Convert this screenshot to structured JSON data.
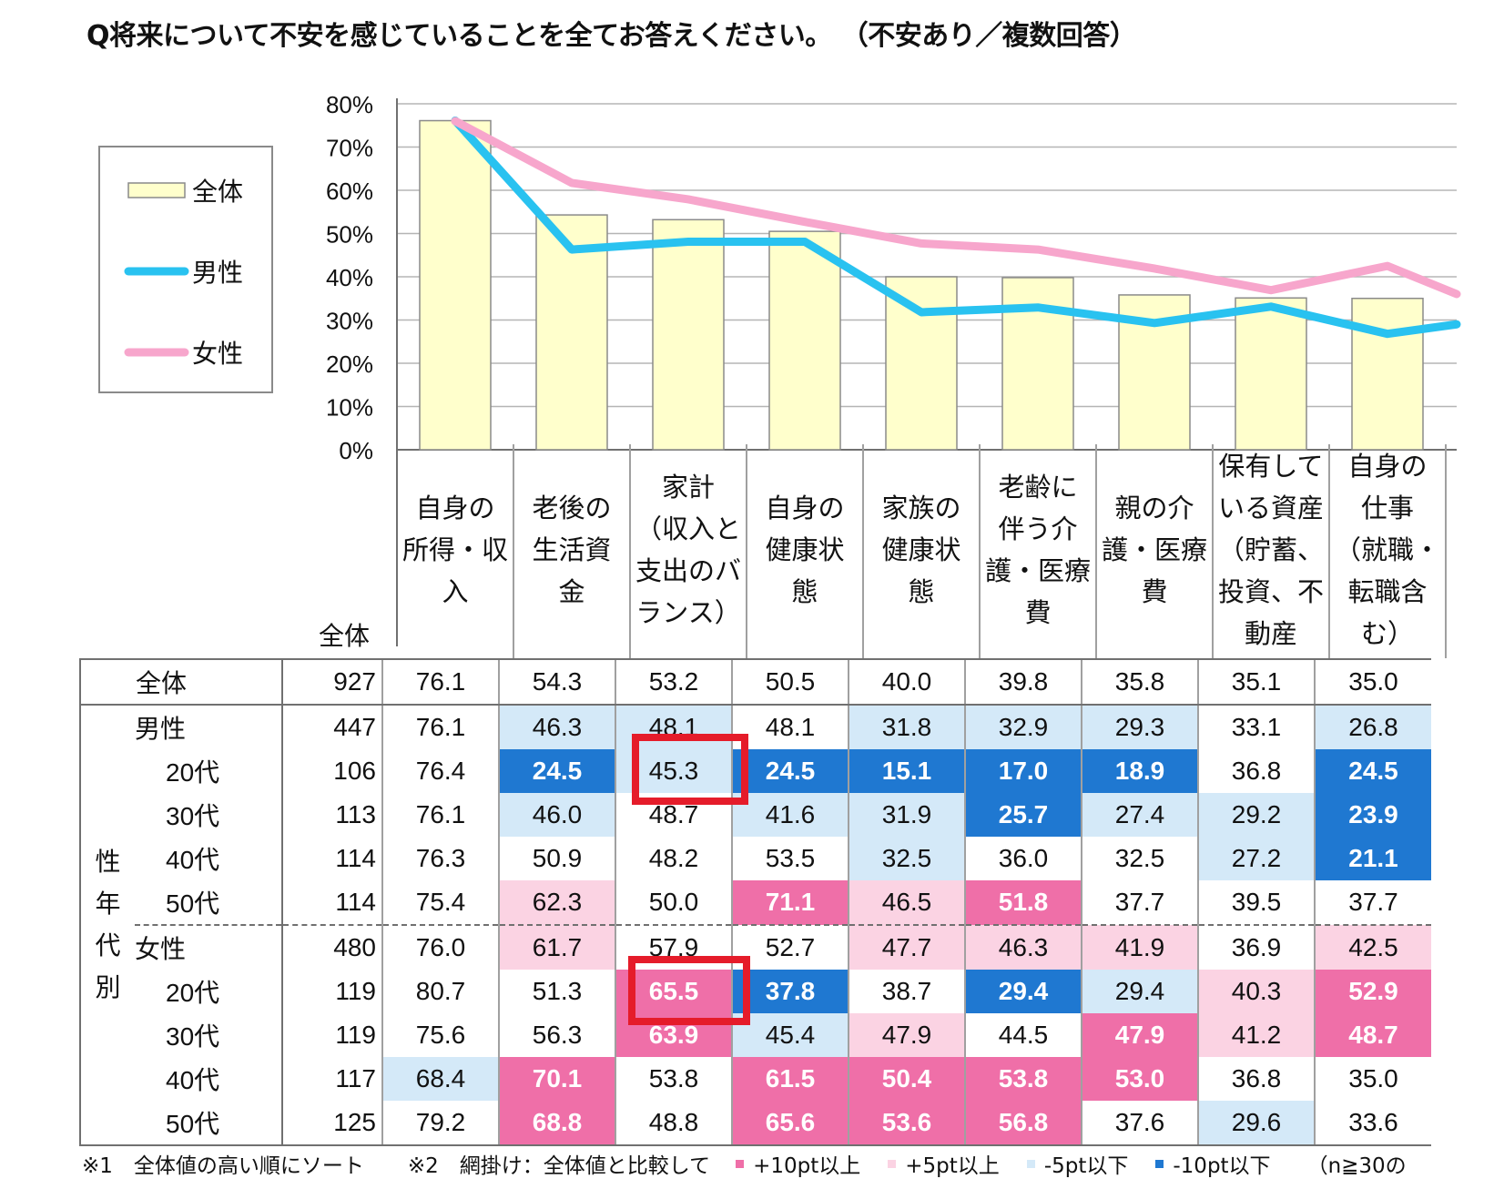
{
  "title": "Q将来について不安を感じていることを全てお答えください。 （不安あり／複数回答）",
  "chart_data": {
    "type": "bar",
    "categories": [
      "自身の所得・収入",
      "老後の生活資金",
      "家計（収入と支出のバランス）",
      "自身の健康状態",
      "家族の健康状態",
      "老齢に伴う介護・医療費",
      "親の介護・医療費",
      "保有している資産（貯蓄、投資、不動産）",
      "自身の仕事（就職・転職含む）"
    ],
    "category_lines": [
      [
        "自身の",
        "所得・収",
        "入"
      ],
      [
        "老後の",
        "生活資",
        "金"
      ],
      [
        "家計",
        "（収入と",
        "支出のバ",
        "ランス）"
      ],
      [
        "自身の",
        "健康状",
        "態"
      ],
      [
        "家族の",
        "健康状",
        "態"
      ],
      [
        "老齢に",
        "伴う介",
        "護・医療",
        "費"
      ],
      [
        "親の介",
        "護・医療",
        "費"
      ],
      [
        "保有して",
        "いる資産",
        "（貯蓄、",
        "投資、不",
        "動産"
      ],
      [
        "自身の",
        "仕事",
        "（就職・",
        "転職含",
        "む）"
      ]
    ],
    "series": [
      {
        "name": "全体",
        "kind": "bar",
        "color": "#ffffcc",
        "values": [
          76.1,
          54.3,
          53.2,
          50.5,
          40.0,
          39.8,
          35.8,
          35.1,
          35.0
        ]
      },
      {
        "name": "男性",
        "kind": "line",
        "color": "#29c2f0",
        "values": [
          76.1,
          46.3,
          48.1,
          48.1,
          31.8,
          32.9,
          29.3,
          33.1,
          26.8
        ],
        "next_value": 29.0
      },
      {
        "name": "女性",
        "kind": "line",
        "color": "#f7a6cc",
        "values": [
          76.0,
          61.7,
          57.9,
          52.7,
          47.7,
          46.3,
          41.9,
          36.9,
          42.5
        ],
        "next_value": 36.0
      }
    ],
    "yticks": [
      "80%",
      "70%",
      "60%",
      "50%",
      "40%",
      "30%",
      "20%",
      "10%",
      "0%"
    ],
    "ylim": [
      0,
      80
    ],
    "legend_position": "left"
  },
  "table": {
    "n_header": "全体",
    "side_label": [
      "性",
      "年",
      "代",
      "別"
    ],
    "rows": [
      {
        "label": "全体",
        "n": "927",
        "values": [
          "76.1",
          "54.3",
          "53.2",
          "50.5",
          "40.0",
          "39.8",
          "35.8",
          "35.1",
          "35.0"
        ],
        "hl": [
          "",
          "",
          "",
          "",
          "",
          "",
          "",
          "",
          ""
        ]
      },
      {
        "label": "男性",
        "n": "447",
        "values": [
          "76.1",
          "46.3",
          "48.1",
          "48.1",
          "31.8",
          "32.9",
          "29.3",
          "33.1",
          "26.8"
        ],
        "hl": [
          "",
          "m5",
          "m5",
          "",
          "m5",
          "m5",
          "m5",
          "",
          "m5"
        ]
      },
      {
        "label": "20代",
        "n": "106",
        "values": [
          "76.4",
          "24.5",
          "45.3",
          "24.5",
          "15.1",
          "17.0",
          "18.9",
          "36.8",
          "24.5"
        ],
        "hl": [
          "",
          "m10",
          "m5",
          "m10",
          "m10",
          "m10",
          "m10",
          "",
          "m10"
        ]
      },
      {
        "label": "30代",
        "n": "113",
        "values": [
          "76.1",
          "46.0",
          "48.7",
          "41.6",
          "31.9",
          "25.7",
          "27.4",
          "29.2",
          "23.9"
        ],
        "hl": [
          "",
          "m5",
          "",
          "m5",
          "m5",
          "m10",
          "m5",
          "m5",
          "m10"
        ]
      },
      {
        "label": "40代",
        "n": "114",
        "values": [
          "76.3",
          "50.9",
          "48.2",
          "53.5",
          "32.5",
          "36.0",
          "32.5",
          "27.2",
          "21.1"
        ],
        "hl": [
          "",
          "",
          "",
          "",
          "m5",
          "",
          "",
          "m5",
          "m10"
        ]
      },
      {
        "label": "50代",
        "n": "114",
        "values": [
          "75.4",
          "62.3",
          "50.0",
          "71.1",
          "46.5",
          "51.8",
          "37.7",
          "39.5",
          "37.7"
        ],
        "hl": [
          "",
          "p5",
          "",
          "p10",
          "p5",
          "p10",
          "",
          "",
          ""
        ]
      },
      {
        "label": "女性",
        "n": "480",
        "values": [
          "76.0",
          "61.7",
          "57.9",
          "52.7",
          "47.7",
          "46.3",
          "41.9",
          "36.9",
          "42.5"
        ],
        "hl": [
          "",
          "p5",
          "",
          "",
          "p5",
          "p5",
          "p5",
          "",
          "p5"
        ]
      },
      {
        "label": "20代",
        "n": "119",
        "values": [
          "80.7",
          "51.3",
          "65.5",
          "37.8",
          "38.7",
          "29.4",
          "29.4",
          "40.3",
          "52.9"
        ],
        "hl": [
          "",
          "",
          "p10",
          "m10",
          "",
          "m10",
          "m5",
          "p5",
          "p10"
        ]
      },
      {
        "label": "30代",
        "n": "119",
        "values": [
          "75.6",
          "56.3",
          "63.9",
          "45.4",
          "47.9",
          "44.5",
          "47.9",
          "41.2",
          "48.7"
        ],
        "hl": [
          "",
          "",
          "p10",
          "m5",
          "p5",
          "",
          "p10",
          "p5",
          "p10"
        ]
      },
      {
        "label": "40代",
        "n": "117",
        "values": [
          "68.4",
          "70.1",
          "53.8",
          "61.5",
          "50.4",
          "53.8",
          "53.0",
          "36.8",
          "35.0"
        ],
        "hl": [
          "m5",
          "p10",
          "",
          "p10",
          "p10",
          "p10",
          "p10",
          "",
          ""
        ]
      },
      {
        "label": "50代",
        "n": "125",
        "values": [
          "79.2",
          "68.8",
          "48.8",
          "65.6",
          "53.6",
          "56.8",
          "37.6",
          "29.6",
          "33.6"
        ],
        "hl": [
          "",
          "p10",
          "",
          "p10",
          "p10",
          "p10",
          "",
          "m5",
          ""
        ]
      }
    ]
  },
  "highlight_colors": {
    "p10": "#ef6fa8",
    "p5": "#fbd3e3",
    "m5": "#d4e9f8",
    "m10": "#1f78d1",
    "red_box": "#e51c2a"
  },
  "footnote": {
    "note1": "※1　全体値の高い順にソート",
    "note2": "※2　網掛け：全体値と比較して",
    "legend_p10": "+10pt以上",
    "legend_p5": "+5pt以上",
    "legend_m5": "-5pt以下",
    "legend_m10": "-10pt以下",
    "tail": "（n≧30の"
  }
}
